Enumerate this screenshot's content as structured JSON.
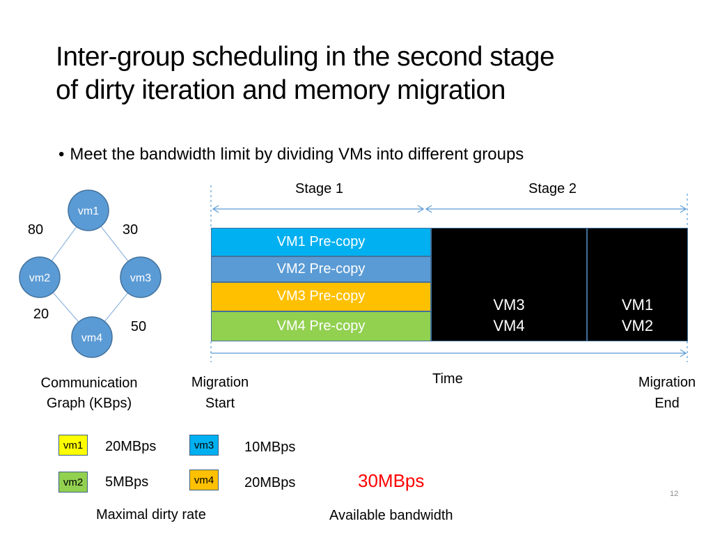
{
  "slide": {
    "title_line1": "Inter-group scheduling in the second stage",
    "title_line2": "of dirty iteration and memory migration",
    "bullet": "Meet the bandwidth limit by dividing VMs into different groups",
    "page_number": "12"
  },
  "graph": {
    "nodes": [
      "vm1",
      "vm2",
      "vm3",
      "vm4"
    ],
    "edges": [
      {
        "from": "vm1",
        "to": "vm2",
        "label": "80"
      },
      {
        "from": "vm1",
        "to": "vm3",
        "label": "30"
      },
      {
        "from": "vm2",
        "to": "vm4",
        "label": "20"
      },
      {
        "from": "vm3",
        "to": "vm4",
        "label": "50"
      }
    ],
    "caption_line1": "Communication",
    "caption_line2": "Graph (KBps)",
    "node_color": "#5b9bd5"
  },
  "timeline": {
    "stage1": "Stage 1",
    "stage2": "Stage 2",
    "precopy": [
      {
        "label": "VM1 Pre-copy",
        "color": "#00b0f0"
      },
      {
        "label": "VM2 Pre-copy",
        "color": "#5b9bd5"
      },
      {
        "label": "VM3 Pre-copy",
        "color": "#ffc000"
      },
      {
        "label": "VM4 Pre-copy",
        "color": "#92d050"
      }
    ],
    "group1": {
      "line1": "VM3",
      "line2": "VM4"
    },
    "group2": {
      "line1": "VM1",
      "line2": "VM2"
    },
    "start_line1": "Migration",
    "start_line2": "Start",
    "time_label": "Time",
    "end_line1": "Migration",
    "end_line2": "End"
  },
  "legend": {
    "items": [
      {
        "vm": "vm1",
        "rate": "20MBps",
        "color": "#ffff00"
      },
      {
        "vm": "vm2",
        "rate": "5MBps",
        "color": "#92d050"
      },
      {
        "vm": "vm3",
        "rate": "10MBps",
        "color": "#00b0f0"
      },
      {
        "vm": "vm4",
        "rate": "20MBps",
        "color": "#ffc000"
      }
    ],
    "dirty_caption": "Maximal dirty rate",
    "bandwidth_value": "30MBps",
    "bandwidth_caption": "Available bandwidth",
    "bandwidth_color": "#ff0000"
  }
}
